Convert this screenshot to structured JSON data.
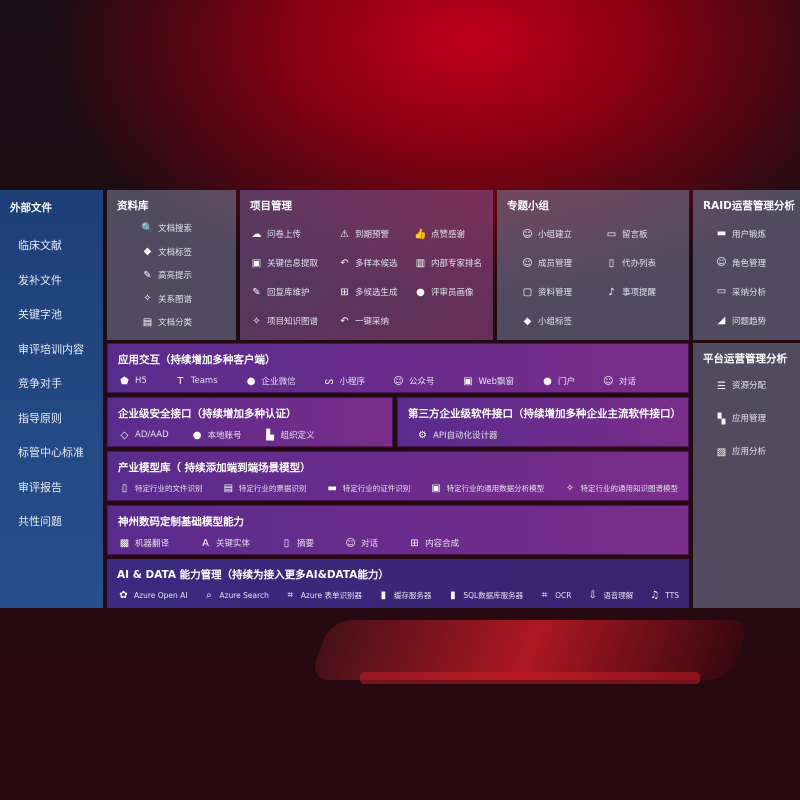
{
  "left": {
    "title": "外部文件",
    "items": [
      "临床文献",
      "发补文件",
      "关键字池",
      "审评培训内容",
      "竞争对手",
      "指导原则",
      "标管中心标准",
      "审评报告",
      "共性问题"
    ]
  },
  "library": {
    "title": "资料库",
    "items": [
      {
        "icon": "doc-search-icon",
        "label": "文档搜索"
      },
      {
        "icon": "tag-icon",
        "label": "文档标签"
      },
      {
        "icon": "pen-icon",
        "label": "高亮提示"
      },
      {
        "icon": "graph-icon",
        "label": "关系图谱"
      },
      {
        "icon": "doc-icon",
        "label": "文档分类"
      }
    ]
  },
  "project": {
    "title": "项目管理",
    "items": [
      {
        "icon": "cloud-upload-icon",
        "label": "问卷上传"
      },
      {
        "icon": "alarm-icon",
        "label": "到期预警"
      },
      {
        "icon": "thumbs-up-icon",
        "label": "点赞感谢"
      },
      {
        "icon": "window-icon",
        "label": "关键信息提取"
      },
      {
        "icon": "reply-icon",
        "label": "多样本候选"
      },
      {
        "icon": "rank-icon",
        "label": "内部专家排名"
      },
      {
        "icon": "edit-icon",
        "label": "回复库维护"
      },
      {
        "icon": "puzzle-icon",
        "label": "多候选生成"
      },
      {
        "icon": "user-icon",
        "label": "评审员画像"
      },
      {
        "icon": "graph-icon",
        "label": "项目知识图谱"
      },
      {
        "icon": "reply-icon",
        "label": "一键采纳"
      }
    ]
  },
  "group": {
    "title": "专题小组",
    "items": [
      {
        "icon": "group-icon",
        "label": "小组建立"
      },
      {
        "icon": "bbs-icon",
        "label": "留言板"
      },
      {
        "icon": "user-add-icon",
        "label": "成员管理"
      },
      {
        "icon": "clipboard-icon",
        "label": "代办列表"
      },
      {
        "icon": "folder-icon",
        "label": "资料管理"
      },
      {
        "icon": "bell-icon",
        "label": "事项提醒"
      },
      {
        "icon": "tag-icon",
        "label": "小组标签"
      }
    ]
  },
  "raid": {
    "title": "RAID运营管理分析",
    "items": [
      {
        "icon": "id-card-icon",
        "label": "用户锻炼"
      },
      {
        "icon": "users-icon",
        "label": "角色管理"
      },
      {
        "icon": "qa-icon",
        "label": "采纳分析"
      },
      {
        "icon": "chart-icon",
        "label": "问题趋势"
      }
    ]
  },
  "platform": {
    "title": "平台运营管理分析",
    "items": [
      {
        "icon": "list-icon",
        "label": "资源分配"
      },
      {
        "icon": "apps-icon",
        "label": "应用管理"
      },
      {
        "icon": "analysis-icon",
        "label": "应用分析"
      }
    ]
  },
  "app": {
    "title": "应用交互（持续增加多种客户端）",
    "items": [
      {
        "icon": "html5-icon",
        "label": "H5"
      },
      {
        "icon": "teams-icon",
        "label": "Teams"
      },
      {
        "icon": "wechat-icon",
        "label": "企业微信"
      },
      {
        "icon": "miniprogram-icon",
        "label": "小程序"
      },
      {
        "icon": "users-icon",
        "label": "公众号"
      },
      {
        "icon": "window-icon",
        "label": "Web飘窗"
      },
      {
        "icon": "portal-icon",
        "label": "门户"
      },
      {
        "icon": "chat-icon",
        "label": "对话"
      }
    ]
  },
  "security": {
    "title": "企业级安全接口（持续增加多种认证）",
    "items": [
      {
        "icon": "azure-ad-icon",
        "label": "AD/AAD"
      },
      {
        "icon": "user-lock-icon",
        "label": "本地账号"
      },
      {
        "icon": "org-icon",
        "label": "组织定义"
      }
    ]
  },
  "third": {
    "title": "第三方企业级软件接口（持续增加多种企业主流软件接口）",
    "items": [
      {
        "icon": "gear-icon",
        "label": "API自动化设计器"
      }
    ]
  },
  "industry": {
    "title": "产业模型库（ 持续添加端到端场景模型）",
    "items": [
      {
        "icon": "file-icon",
        "label": "特定行业的文件识别"
      },
      {
        "icon": "receipt-icon",
        "label": "特定行业的票据识别"
      },
      {
        "icon": "id-card-icon",
        "label": "特定行业的证件识别"
      },
      {
        "icon": "image-icon",
        "label": "特定行业的通用数据分析模型"
      },
      {
        "icon": "graph-icon",
        "label": "特定行业的通用知识图谱模型"
      }
    ]
  },
  "base": {
    "title": "神州数码定制基础模型能力",
    "items": [
      {
        "icon": "translate-icon",
        "label": "机器翻译"
      },
      {
        "icon": "entity-icon",
        "label": "关键实体"
      },
      {
        "icon": "summary-icon",
        "label": "摘要"
      },
      {
        "icon": "chat-icon",
        "label": "对话"
      },
      {
        "icon": "puzzle-icon",
        "label": "内容合成"
      }
    ]
  },
  "ai": {
    "title": "AI & DATA 能力管理（持续为接入更多AI&DATA能力）",
    "items": [
      {
        "icon": "openai-icon",
        "label": "Azure Open AI"
      },
      {
        "icon": "search-icon",
        "label": "Azure Search"
      },
      {
        "icon": "form-icon",
        "label": "Azure 表单识别器"
      },
      {
        "icon": "cache-icon",
        "label": "缓存服务器"
      },
      {
        "icon": "database-icon",
        "label": "SQL数据库服务器"
      },
      {
        "icon": "ocr-icon",
        "label": "OCR"
      },
      {
        "icon": "speech-icon",
        "label": "语音理解"
      },
      {
        "icon": "tts-icon",
        "label": "TTS"
      }
    ]
  }
}
